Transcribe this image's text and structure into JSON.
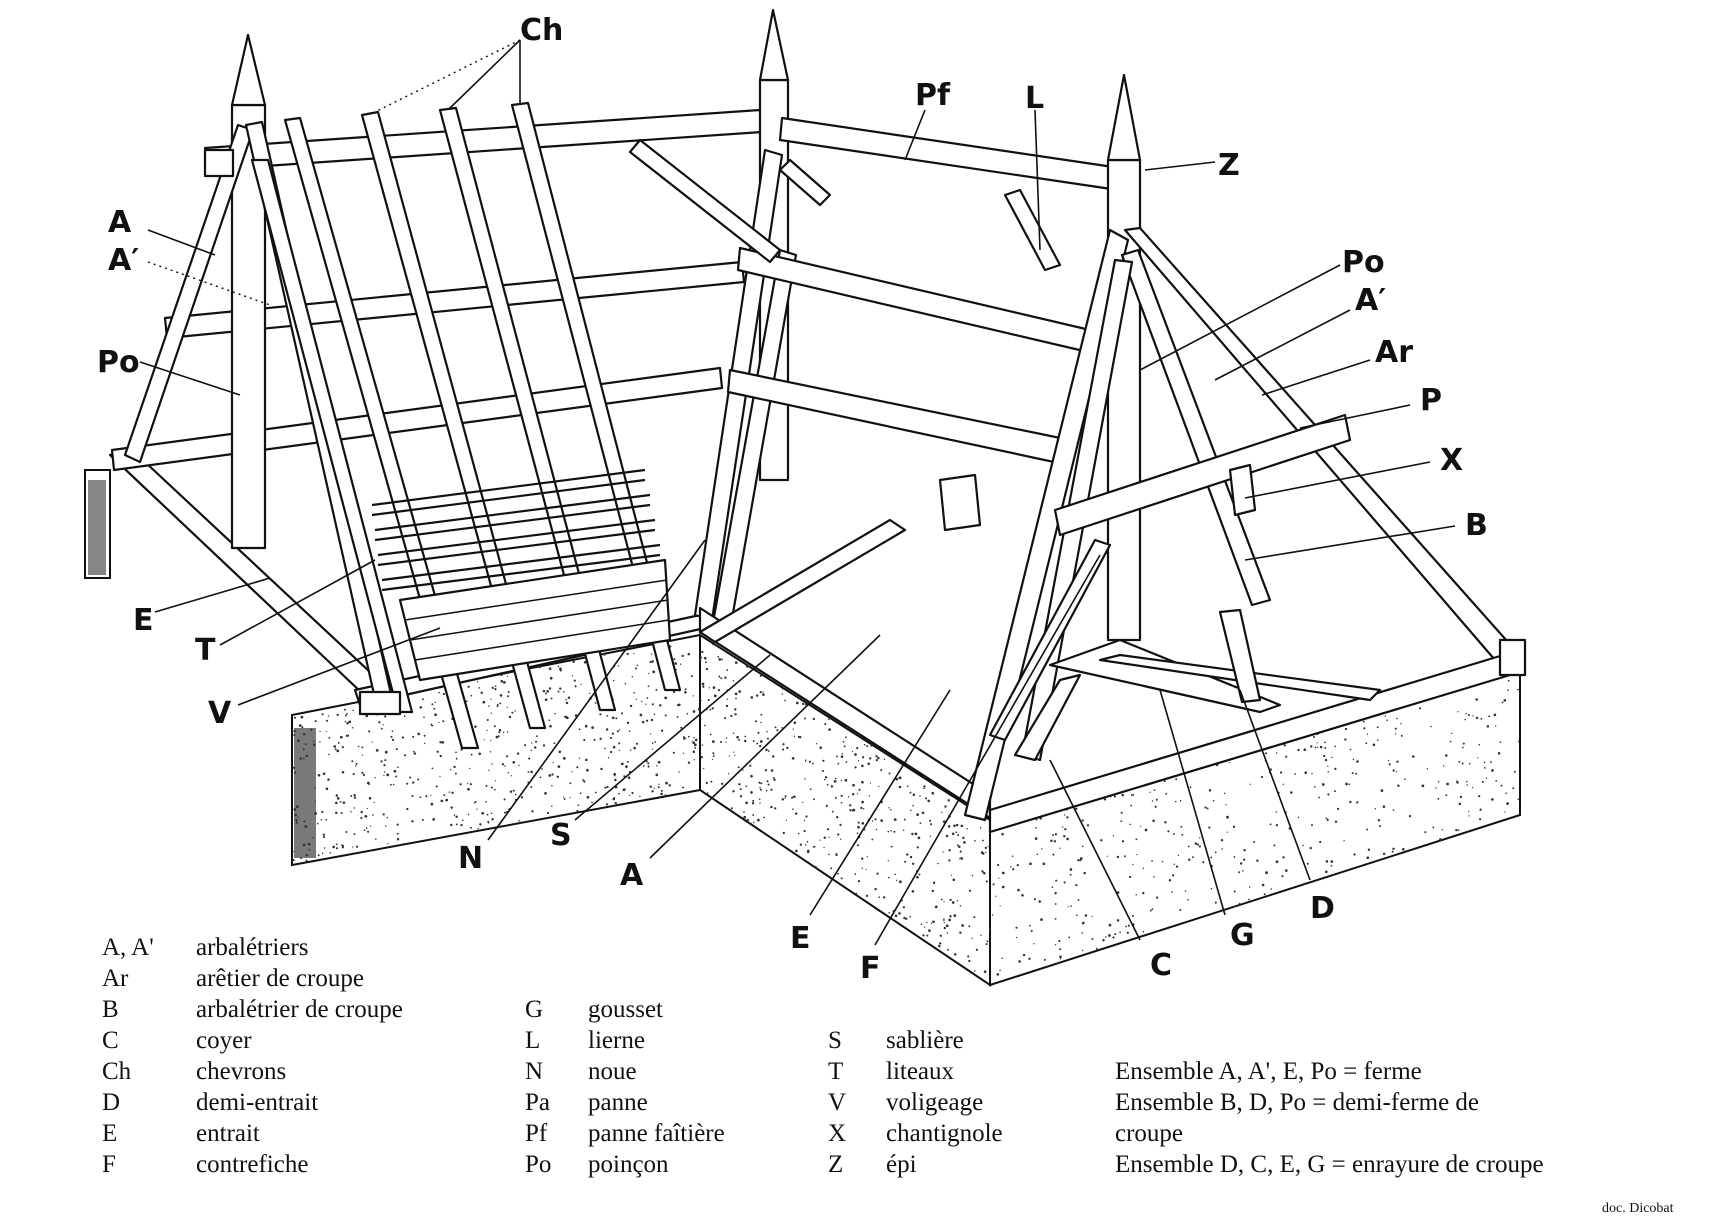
{
  "diagram": {
    "labels": {
      "ch": "Ch",
      "pf": "Pf",
      "l": "L",
      "z": "Z",
      "a_left": "A",
      "a_prime_left": "A′",
      "po_left": "Po",
      "e_left": "E",
      "t": "T",
      "v": "V",
      "n": "N",
      "s": "S",
      "a_bottom": "A",
      "e_bottom": "E",
      "f": "F",
      "c": "C",
      "g": "G",
      "d": "D",
      "po_right": "Po",
      "a_prime_right": "A′",
      "ar": "Ar",
      "p": "P",
      "x": "X",
      "b": "B"
    }
  },
  "legend": {
    "col1": [
      {
        "code": "A, A'",
        "term": "arbalétriers"
      },
      {
        "code": "Ar",
        "term": "arêtier de croupe"
      },
      {
        "code": "B",
        "term": "arbalétrier de croupe"
      },
      {
        "code": "C",
        "term": "coyer"
      },
      {
        "code": "Ch",
        "term": "chevrons"
      },
      {
        "code": "D",
        "term": "demi-entrait"
      },
      {
        "code": "E",
        "term": "entrait"
      },
      {
        "code": "F",
        "term": "contrefiche"
      }
    ],
    "col2": [
      {
        "code": "G",
        "term": "gousset"
      },
      {
        "code": "L",
        "term": "lierne"
      },
      {
        "code": "N",
        "term": "noue"
      },
      {
        "code": "Pa",
        "term": "panne"
      },
      {
        "code": "Pf",
        "term": "panne faîtière"
      },
      {
        "code": "Po",
        "term": "poinçon"
      }
    ],
    "col3": [
      {
        "code": "S",
        "term": "sablière"
      },
      {
        "code": "T",
        "term": "liteaux"
      },
      {
        "code": "V",
        "term": "voligeage"
      },
      {
        "code": "X",
        "term": "chantignole"
      },
      {
        "code": "Z",
        "term": "épi"
      }
    ],
    "col4": [
      "Ensemble A, A', E, Po = ferme",
      "Ensemble B, D, Po = demi-ferme de",
      "croupe",
      "Ensemble D, C, E, G = enrayure de croupe"
    ]
  },
  "credit": "doc. Dicobat"
}
